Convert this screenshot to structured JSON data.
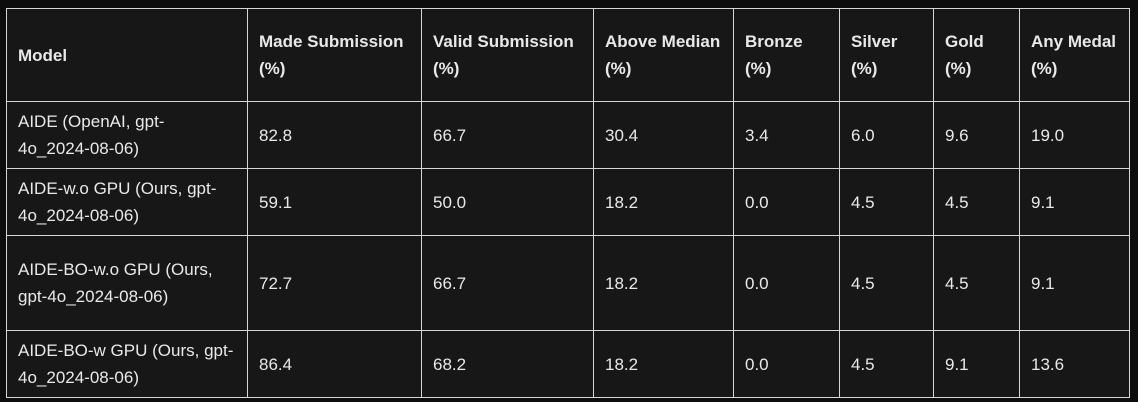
{
  "table": {
    "headers": [
      "Model",
      "Made Submission (%)",
      "Valid Submission (%)",
      "Above Median (%)",
      "Bronze (%)",
      "Silver (%)",
      "Gold (%)",
      "Any Medal (%)"
    ],
    "rows": [
      [
        "AIDE (OpenAI, gpt-4o_2024-08-06)",
        "82.8",
        "66.7",
        "30.4",
        "3.4",
        "6.0",
        "9.6",
        "19.0"
      ],
      [
        "AIDE-w.o GPU (Ours, gpt-4o_2024-08-06)",
        "59.1",
        "50.0",
        "18.2",
        "0.0",
        "4.5",
        "4.5",
        "9.1"
      ],
      [
        "AIDE-BO-w.o GPU (Ours, gpt-4o_2024-08-06)",
        "72.7",
        "66.7",
        "18.2",
        "0.0",
        "4.5",
        "4.5",
        "9.1"
      ],
      [
        "AIDE-BO-w GPU (Ours, gpt-4o_2024-08-06)",
        "86.4",
        "68.2",
        "18.2",
        "0.0",
        "4.5",
        "9.1",
        "13.6"
      ]
    ]
  }
}
